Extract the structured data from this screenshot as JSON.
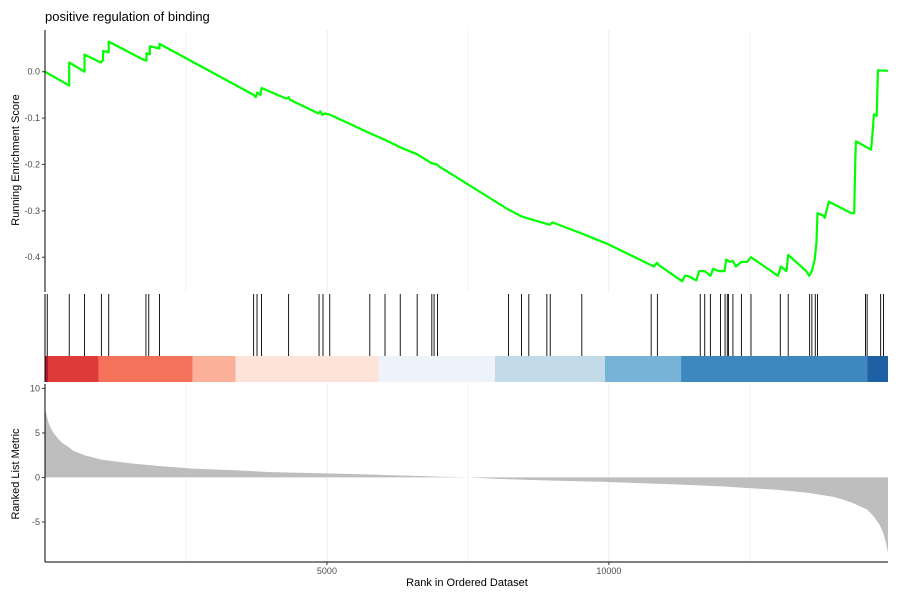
{
  "chart_data": {
    "type": "line",
    "title": "positive regulation of binding",
    "xlabel": "Rank in Ordered Dataset",
    "x_ticks": [
      5000,
      10000
    ],
    "xlim": [
      0,
      14950
    ],
    "grid": "major vertical",
    "colors": {
      "es_line": "#00ff00",
      "hits": "#000000",
      "metric_fill": "#bebebe",
      "axis": "#000000",
      "grid": "#ebebeb"
    },
    "es_panel": {
      "ylabel": "Running Enrichment Score",
      "y_ticks": [
        0.0,
        -0.1,
        -0.2,
        -0.3,
        -0.4
      ],
      "tick_labels": [
        "0.0",
        "-0.1",
        "-0.2",
        "-0.3",
        "-0.4"
      ],
      "ylim": [
        -0.475,
        0.09
      ],
      "points": [
        [
          0,
          0.0
        ],
        [
          430,
          -0.03
        ],
        [
          430,
          0.02
        ],
        [
          700,
          0.0
        ],
        [
          700,
          0.037
        ],
        [
          990,
          0.02
        ],
        [
          1030,
          0.025
        ],
        [
          1030,
          0.045
        ],
        [
          1130,
          0.042
        ],
        [
          1130,
          0.065
        ],
        [
          1760,
          0.025
        ],
        [
          1800,
          0.024
        ],
        [
          1800,
          0.04
        ],
        [
          1860,
          0.038
        ],
        [
          1860,
          0.055
        ],
        [
          2030,
          0.05
        ],
        [
          2030,
          0.06
        ],
        [
          3700,
          -0.05
        ],
        [
          3740,
          -0.055
        ],
        [
          3760,
          -0.045
        ],
        [
          3820,
          -0.05
        ],
        [
          3840,
          -0.035
        ],
        [
          4280,
          -0.058
        ],
        [
          4320,
          -0.055
        ],
        [
          4340,
          -0.06
        ],
        [
          4850,
          -0.09
        ],
        [
          4880,
          -0.085
        ],
        [
          4920,
          -0.093
        ],
        [
          4960,
          -0.09
        ],
        [
          5040,
          -0.092
        ],
        [
          5750,
          -0.132
        ],
        [
          6050,
          -0.148
        ],
        [
          6300,
          -0.163
        ],
        [
          6600,
          -0.178
        ],
        [
          6850,
          -0.197
        ],
        [
          6950,
          -0.2
        ],
        [
          7000,
          -0.205
        ],
        [
          8200,
          -0.296
        ],
        [
          8450,
          -0.312
        ],
        [
          8950,
          -0.33
        ],
        [
          9000,
          -0.325
        ],
        [
          9500,
          -0.348
        ],
        [
          9700,
          -0.358
        ],
        [
          9950,
          -0.37
        ],
        [
          10800,
          -0.42
        ],
        [
          10850,
          -0.412
        ],
        [
          10900,
          -0.418
        ],
        [
          11300,
          -0.452
        ],
        [
          11350,
          -0.44
        ],
        [
          11400,
          -0.44
        ],
        [
          11550,
          -0.45
        ],
        [
          11600,
          -0.43
        ],
        [
          11700,
          -0.43
        ],
        [
          11800,
          -0.44
        ],
        [
          11850,
          -0.425
        ],
        [
          11950,
          -0.43
        ],
        [
          12050,
          -0.43
        ],
        [
          12080,
          -0.405
        ],
        [
          12150,
          -0.41
        ],
        [
          12200,
          -0.408
        ],
        [
          12250,
          -0.42
        ],
        [
          12350,
          -0.41
        ],
        [
          12450,
          -0.41
        ],
        [
          12520,
          -0.4
        ],
        [
          13000,
          -0.44
        ],
        [
          13050,
          -0.42
        ],
        [
          13150,
          -0.43
        ],
        [
          13180,
          -0.395
        ],
        [
          13500,
          -0.43
        ],
        [
          13550,
          -0.44
        ],
        [
          13600,
          -0.43
        ],
        [
          13650,
          -0.405
        ],
        [
          13680,
          -0.37
        ],
        [
          13700,
          -0.305
        ],
        [
          13800,
          -0.31
        ],
        [
          13830,
          -0.315
        ],
        [
          13900,
          -0.28
        ],
        [
          14300,
          -0.305
        ],
        [
          14350,
          -0.305
        ],
        [
          14370,
          -0.19
        ],
        [
          14380,
          -0.15
        ],
        [
          14650,
          -0.168
        ],
        [
          14680,
          -0.125
        ],
        [
          14700,
          -0.092
        ],
        [
          14750,
          -0.095
        ],
        [
          14770,
          0.003
        ],
        [
          14950,
          0.002
        ]
      ]
    },
    "hits_panel": {
      "hits": [
        40,
        430,
        700,
        1000,
        1130,
        1790,
        1840,
        2030,
        3700,
        3760,
        3840,
        4320,
        4860,
        4930,
        5050,
        5760,
        6030,
        6300,
        6600,
        6860,
        6900,
        6960,
        8220,
        8450,
        8580,
        8900,
        8960,
        9520,
        10750,
        10860,
        11620,
        11700,
        11800,
        11980,
        12060,
        12100,
        12120,
        12200,
        12350,
        12520,
        13040,
        13180,
        13560,
        13600,
        13660,
        13700,
        14550,
        14580,
        14820,
        14870
      ],
      "color_bands": [
        {
          "from": 0,
          "to": 60,
          "color": "#b2182b"
        },
        {
          "from": 60,
          "to": 950,
          "color": "#de3a3a"
        },
        {
          "from": 950,
          "to": 2620,
          "color": "#f4725a"
        },
        {
          "from": 2620,
          "to": 3380,
          "color": "#fbb09a"
        },
        {
          "from": 3380,
          "to": 5920,
          "color": "#fde3d8"
        },
        {
          "from": 5920,
          "to": 7980,
          "color": "#eef3fb"
        },
        {
          "from": 7980,
          "to": 9930,
          "color": "#c3dbe8"
        },
        {
          "from": 9930,
          "to": 11280,
          "color": "#76b3d7"
        },
        {
          "from": 11280,
          "to": 14580,
          "color": "#3e88c0"
        },
        {
          "from": 14580,
          "to": 14950,
          "color": "#1f5fa3"
        }
      ]
    },
    "metric_panel": {
      "ylabel": "Ranked List Metric",
      "y_ticks": [
        10,
        5,
        0,
        -5
      ],
      "tick_labels": [
        "10",
        "5",
        "0",
        "-5"
      ],
      "ylim": [
        -9.5,
        10.5
      ],
      "curve": [
        [
          0,
          7.6
        ],
        [
          30,
          7.0
        ],
        [
          60,
          6.2
        ],
        [
          100,
          5.6
        ],
        [
          150,
          5.0
        ],
        [
          200,
          4.6
        ],
        [
          300,
          3.9
        ],
        [
          400,
          3.5
        ],
        [
          500,
          3.0
        ],
        [
          700,
          2.5
        ],
        [
          1000,
          2.0
        ],
        [
          1500,
          1.6
        ],
        [
          2000,
          1.3
        ],
        [
          2620,
          1.0
        ],
        [
          3380,
          0.8
        ],
        [
          4000,
          0.6
        ],
        [
          5000,
          0.45
        ],
        [
          5920,
          0.3
        ],
        [
          7000,
          0.1
        ],
        [
          7500,
          0.0
        ],
        [
          7980,
          -0.15
        ],
        [
          9000,
          -0.35
        ],
        [
          9930,
          -0.5
        ],
        [
          11280,
          -0.8
        ],
        [
          12000,
          -1.0
        ],
        [
          13000,
          -1.4
        ],
        [
          13500,
          -1.7
        ],
        [
          14000,
          -2.2
        ],
        [
          14300,
          -2.8
        ],
        [
          14580,
          -3.6
        ],
        [
          14700,
          -4.4
        ],
        [
          14800,
          -5.3
        ],
        [
          14870,
          -6.3
        ],
        [
          14920,
          -7.5
        ],
        [
          14950,
          -8.5
        ]
      ]
    }
  }
}
